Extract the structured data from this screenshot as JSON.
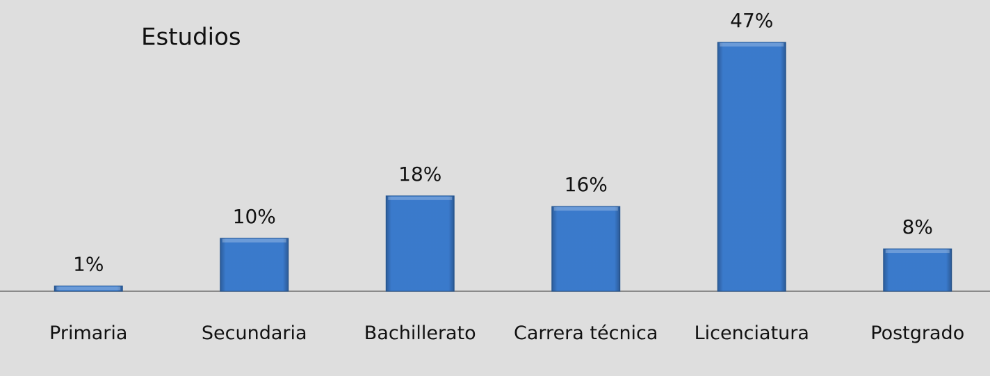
{
  "chart_data": {
    "type": "bar",
    "title": "Estudios",
    "categories": [
      "Primaria",
      "Secundaria",
      "Bachillerato",
      "Carrera técnica",
      "Licenciatura",
      "Postgrado"
    ],
    "values": [
      1,
      10,
      18,
      16,
      47,
      8
    ],
    "value_labels": [
      "1%",
      "10%",
      "18%",
      "16%",
      "47%",
      "8%"
    ],
    "color": "#3d80d6"
  }
}
